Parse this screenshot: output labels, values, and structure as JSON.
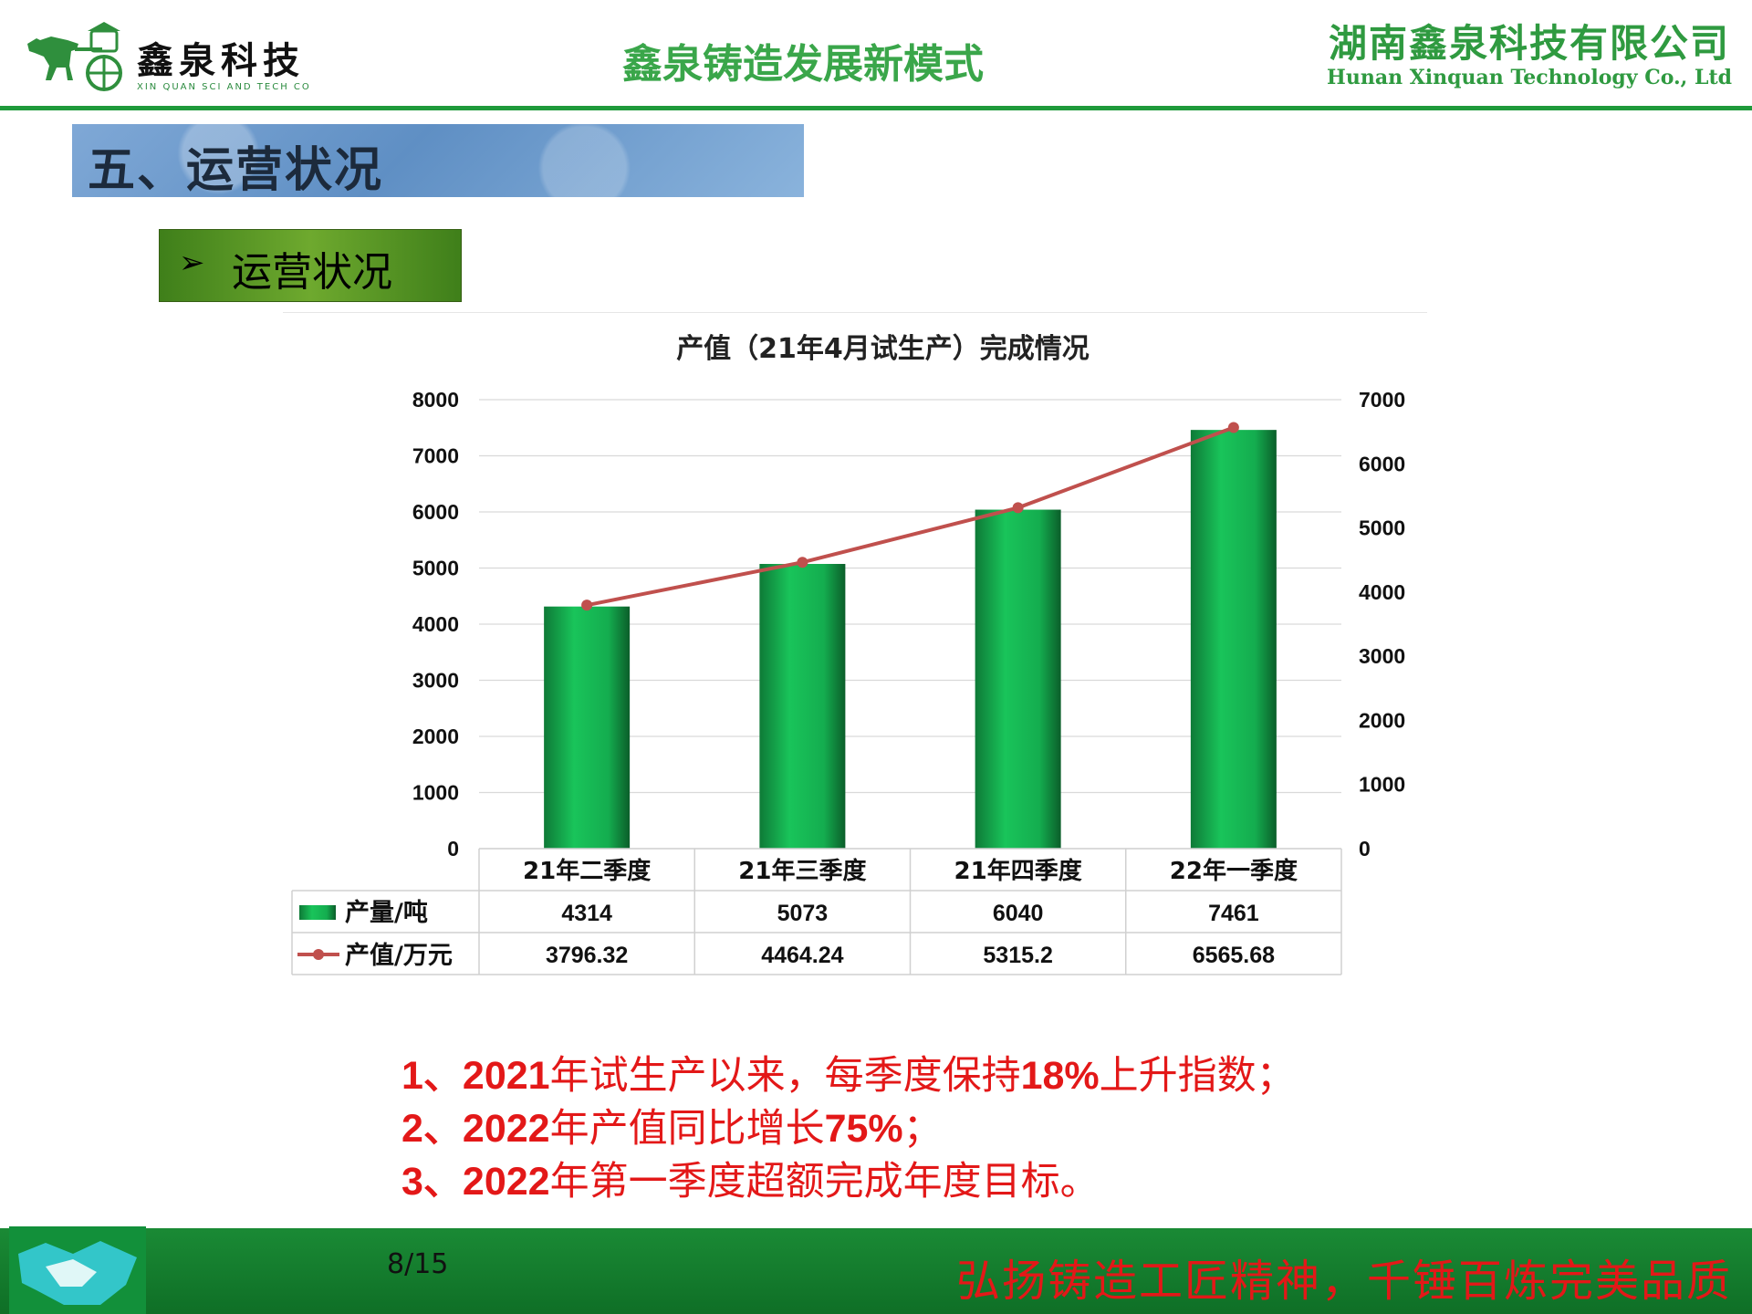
{
  "header": {
    "logo_name": "鑫泉科技",
    "logo_sub": "XIN QUAN SCI AND TECH CO",
    "deck_title": "鑫泉铸造发展新模式",
    "company_cn": "湖南鑫泉科技有限公司",
    "company_en": "Hunan Xinquan Technology Co., Ltd"
  },
  "section": {
    "title": "五、运营状况",
    "subtitle": "运营状况",
    "subtitle_bullet": "➢"
  },
  "chart_data": {
    "type": "bar",
    "title": "产值（21年4月试生产）完成情况",
    "categories": [
      "21年二季度",
      "21年三季度",
      "21年四季度",
      "22年一季度"
    ],
    "series": [
      {
        "name": "产量/吨",
        "type": "bar",
        "axis": "left",
        "values": [
          4314,
          5073,
          6040,
          7461
        ],
        "labels": [
          "4314",
          "5073",
          "6040",
          "7461"
        ],
        "color": "#14b84e"
      },
      {
        "name": "产值/万元",
        "type": "line",
        "axis": "right",
        "values": [
          3796.32,
          4464.24,
          5315.2,
          6565.68
        ],
        "labels": [
          "3796.32",
          "4464.24",
          "5315.2",
          "6565.68"
        ],
        "color": "#c0504d"
      }
    ],
    "ylim_left": [
      0,
      8000
    ],
    "ylim_right": [
      0,
      7000
    ],
    "yticks_left": [
      0,
      1000,
      2000,
      3000,
      4000,
      5000,
      6000,
      7000,
      8000
    ],
    "yticks_right": [
      0,
      1000,
      2000,
      3000,
      4000,
      5000,
      6000,
      7000
    ],
    "grid": true,
    "data_table": true
  },
  "notes": [
    {
      "num": "1、",
      "parts": [
        {
          "b": "2021"
        },
        {
          "t": "年试生产以来，每季度保持"
        },
        {
          "b": "18%"
        },
        {
          "t": "上升指数；"
        }
      ]
    },
    {
      "num": "2、",
      "parts": [
        {
          "b": "2022"
        },
        {
          "t": "年产值同比增长"
        },
        {
          "b": "75%"
        },
        {
          "t": "；"
        }
      ]
    },
    {
      "num": "3、",
      "parts": [
        {
          "b": "2022"
        },
        {
          "t": "年第一季度超额完成年度目标。"
        }
      ]
    }
  ],
  "footer": {
    "page": "8/15",
    "slogan": "弘扬铸造工匠精神，千锤百炼完美品质"
  },
  "colors": {
    "brand_green": "#1f9a3b",
    "accent_red": "#e31818",
    "section_blue": "#6f9ccf"
  }
}
